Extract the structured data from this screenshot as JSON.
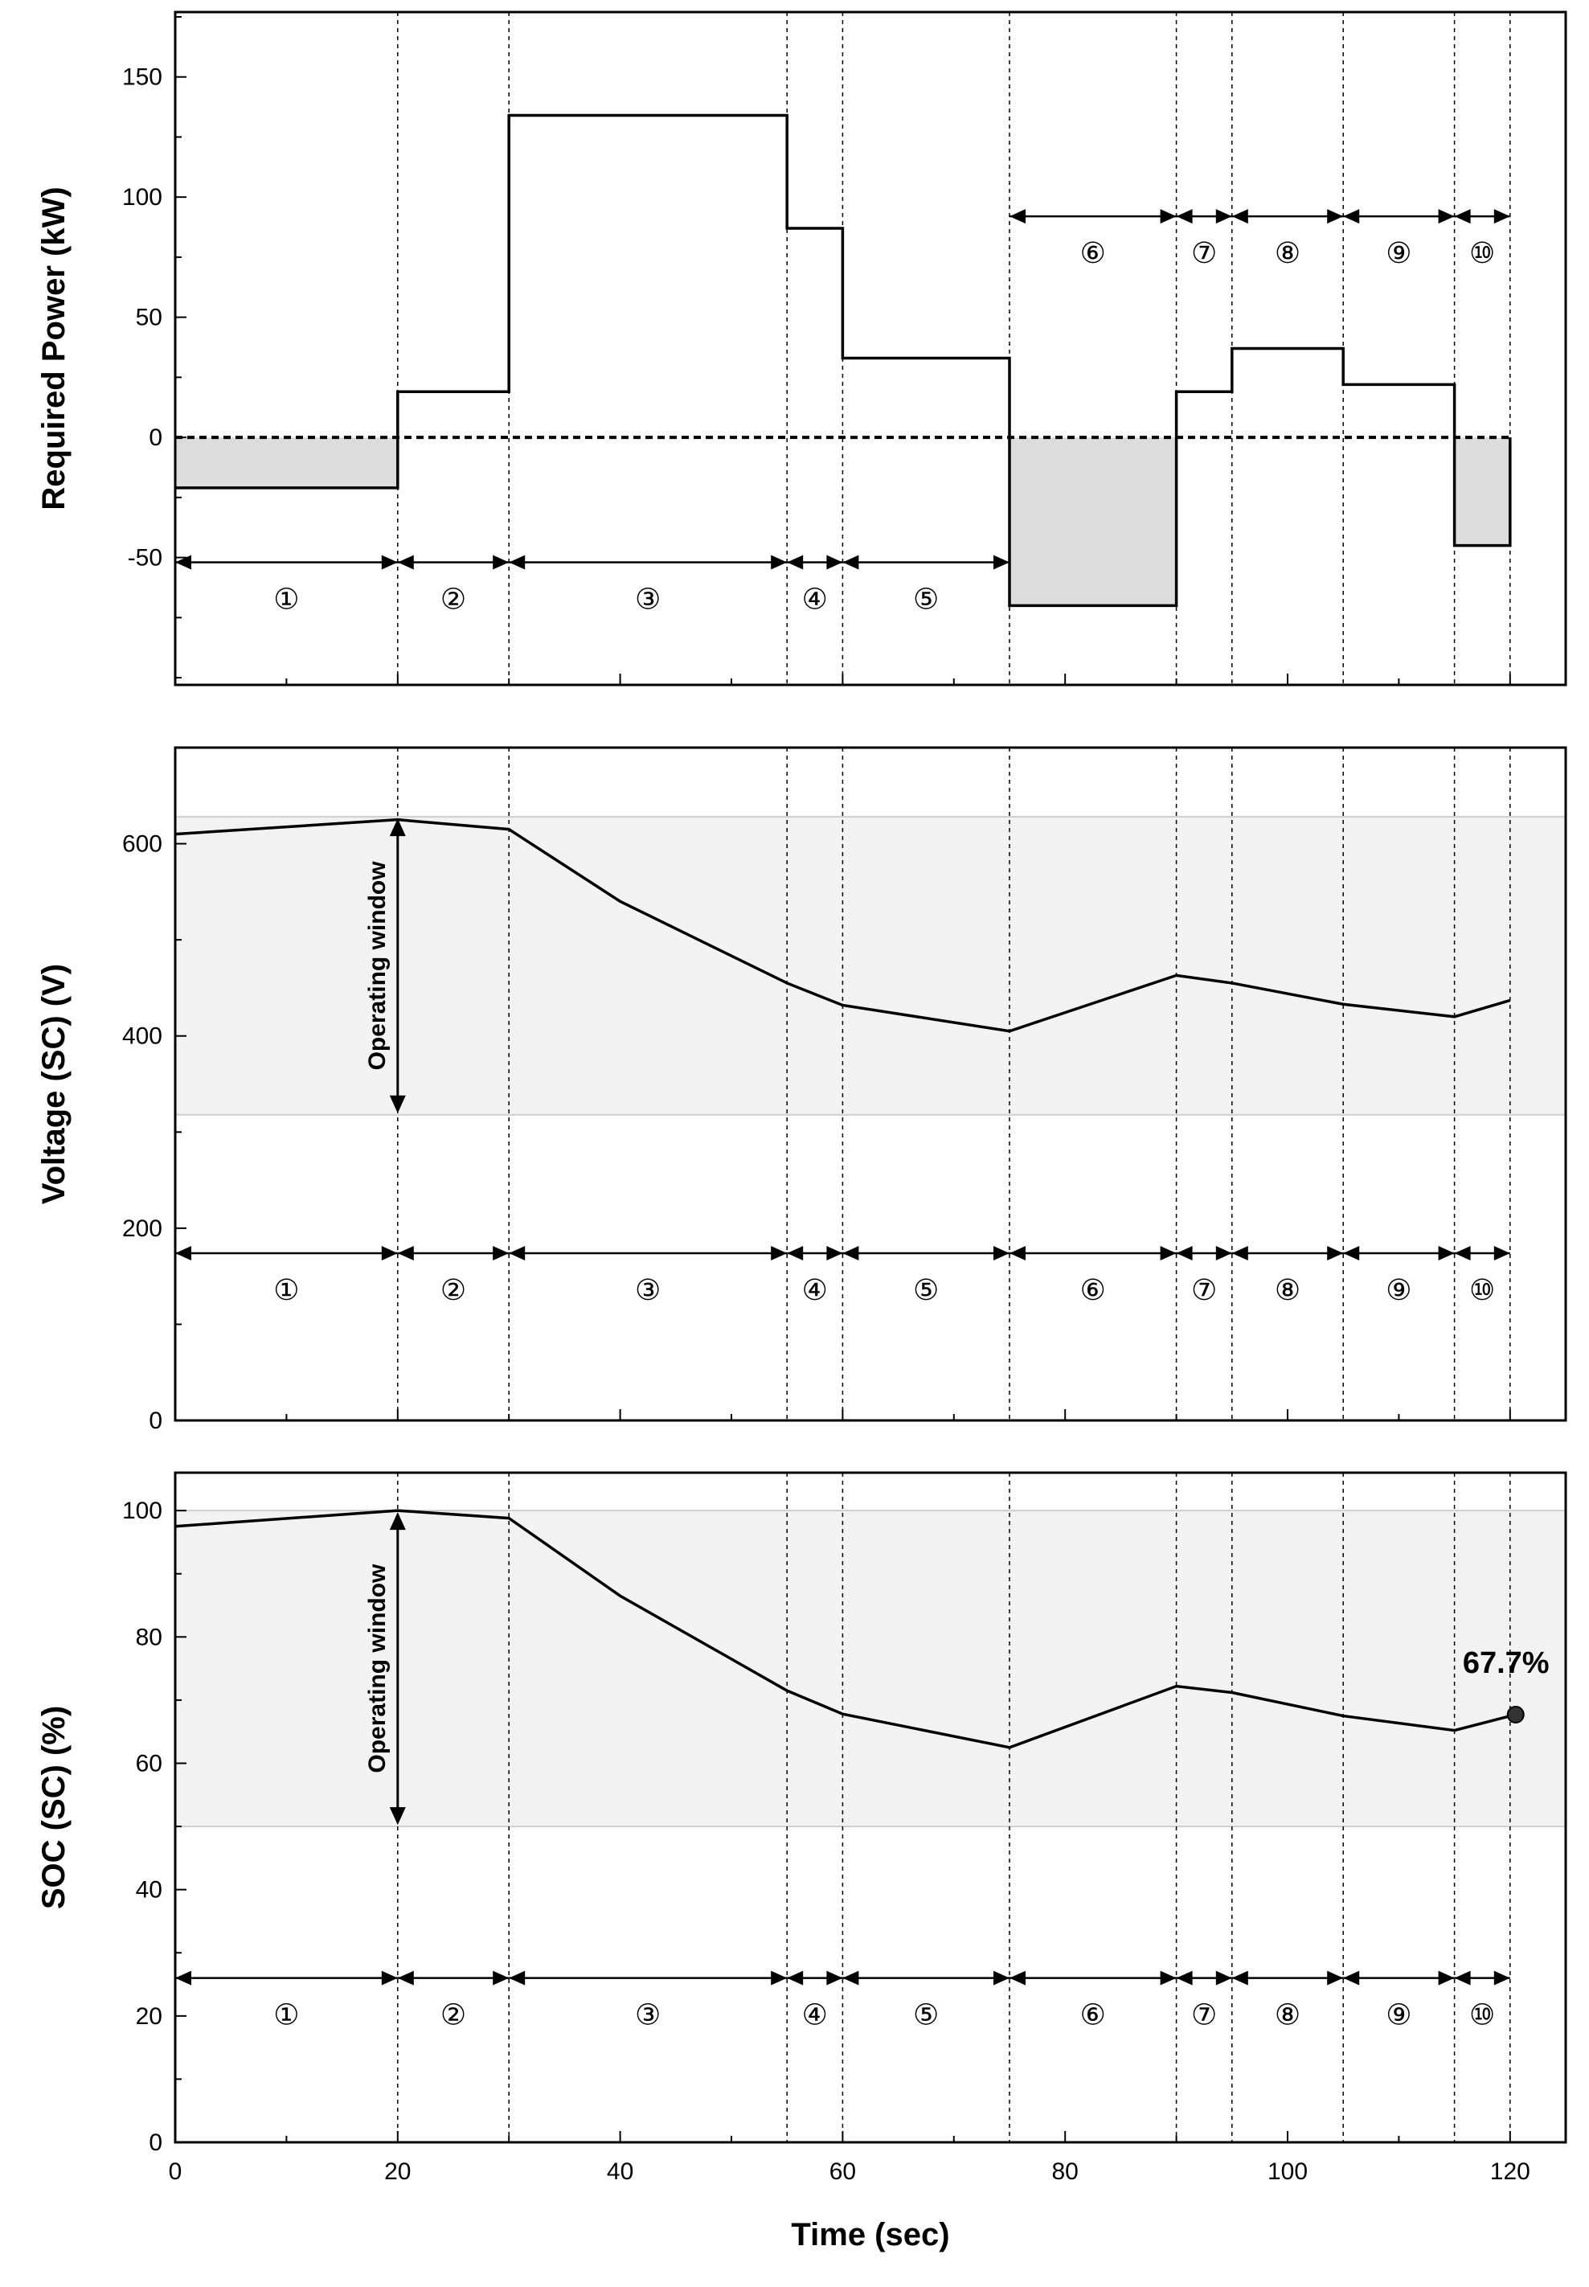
{
  "chart_data": [
    {
      "type": "line",
      "id": "power",
      "ylabel": "Required Power (kW)",
      "xlim": [
        0,
        125
      ],
      "ylim": [
        -103,
        177
      ],
      "yticks": [
        -50,
        0,
        50,
        100,
        150
      ],
      "series": [
        {
          "name": "Required Power",
          "step": true,
          "x": [
            0,
            20,
            30,
            55,
            60,
            75,
            90,
            95,
            105,
            115,
            120
          ],
          "y": [
            -21,
            19,
            134,
            87,
            33,
            -70,
            19,
            37,
            22,
            -45,
            -45
          ]
        }
      ],
      "zero_line": true,
      "shade_negative": true,
      "segment_rows": [
        {
          "y": -52,
          "segments": [
            [
              0,
              20
            ],
            [
              20,
              30
            ],
            [
              30,
              55
            ],
            [
              55,
              60
            ],
            [
              60,
              75
            ]
          ]
        },
        {
          "y": 92,
          "segments": [
            [
              75,
              90
            ],
            [
              90,
              95
            ],
            [
              95,
              105
            ],
            [
              105,
              115
            ],
            [
              115,
              120
            ]
          ]
        }
      ]
    },
    {
      "type": "line",
      "id": "voltage",
      "ylabel": "Voltage (SC) (V)",
      "xlim": [
        0,
        125
      ],
      "ylim": [
        0,
        700
      ],
      "yticks": [
        0,
        200,
        400,
        600
      ],
      "window": [
        318,
        628
      ],
      "window_label": "Operating window",
      "window_arrow_x": 20,
      "series": [
        {
          "name": "Voltage (SC)",
          "x": [
            0,
            20,
            30,
            40,
            55,
            60,
            75,
            90,
            95,
            105,
            115,
            120
          ],
          "y": [
            610,
            625,
            615,
            540,
            455,
            432,
            405,
            463,
            455,
            433,
            420,
            437
          ]
        }
      ],
      "segment_rows": [
        {
          "y": 174,
          "segments": [
            [
              0,
              20
            ],
            [
              20,
              30
            ],
            [
              30,
              55
            ],
            [
              55,
              60
            ],
            [
              60,
              75
            ],
            [
              75,
              90
            ],
            [
              90,
              95
            ],
            [
              95,
              105
            ],
            [
              105,
              115
            ],
            [
              115,
              120
            ]
          ]
        }
      ]
    },
    {
      "type": "line",
      "id": "soc",
      "ylabel": "SOC (SC) (%)",
      "xlabel": "Time (sec)",
      "xlim": [
        0,
        125
      ],
      "ylim": [
        0,
        106
      ],
      "yticks": [
        0,
        20,
        40,
        60,
        80,
        100
      ],
      "xticks": [
        0,
        20,
        40,
        60,
        80,
        100,
        120
      ],
      "window": [
        50,
        100
      ],
      "window_label": "Operating window",
      "window_arrow_x": 20,
      "series": [
        {
          "name": "SOC (SC)",
          "x": [
            0,
            20,
            30,
            40,
            55,
            60,
            75,
            90,
            95,
            105,
            115,
            120.5
          ],
          "y": [
            97.5,
            100,
            98.8,
            86.5,
            71.5,
            67.8,
            62.5,
            72.2,
            71.2,
            67.5,
            65.2,
            67.7
          ]
        }
      ],
      "end_marker": {
        "x": 120.5,
        "y": 67.7,
        "label": "67.7%"
      },
      "segment_rows": [
        {
          "y": 26,
          "segments": [
            [
              0,
              20
            ],
            [
              20,
              30
            ],
            [
              30,
              55
            ],
            [
              55,
              60
            ],
            [
              60,
              75
            ],
            [
              75,
              90
            ],
            [
              90,
              95
            ],
            [
              95,
              105
            ],
            [
              105,
              115
            ],
            [
              115,
              120
            ]
          ]
        }
      ]
    }
  ],
  "segment_labels": [
    "①",
    "②",
    "③",
    "④",
    "⑤",
    "⑥",
    "⑦",
    "⑧",
    "⑨",
    "⑩"
  ],
  "phase_boundaries": [
    20,
    30,
    55,
    60,
    75,
    90,
    95,
    105,
    115,
    120
  ],
  "colors": {
    "line": "#000000",
    "shade": "#dcdcdc",
    "window": "#f2f2f2",
    "grid": "#000000"
  }
}
